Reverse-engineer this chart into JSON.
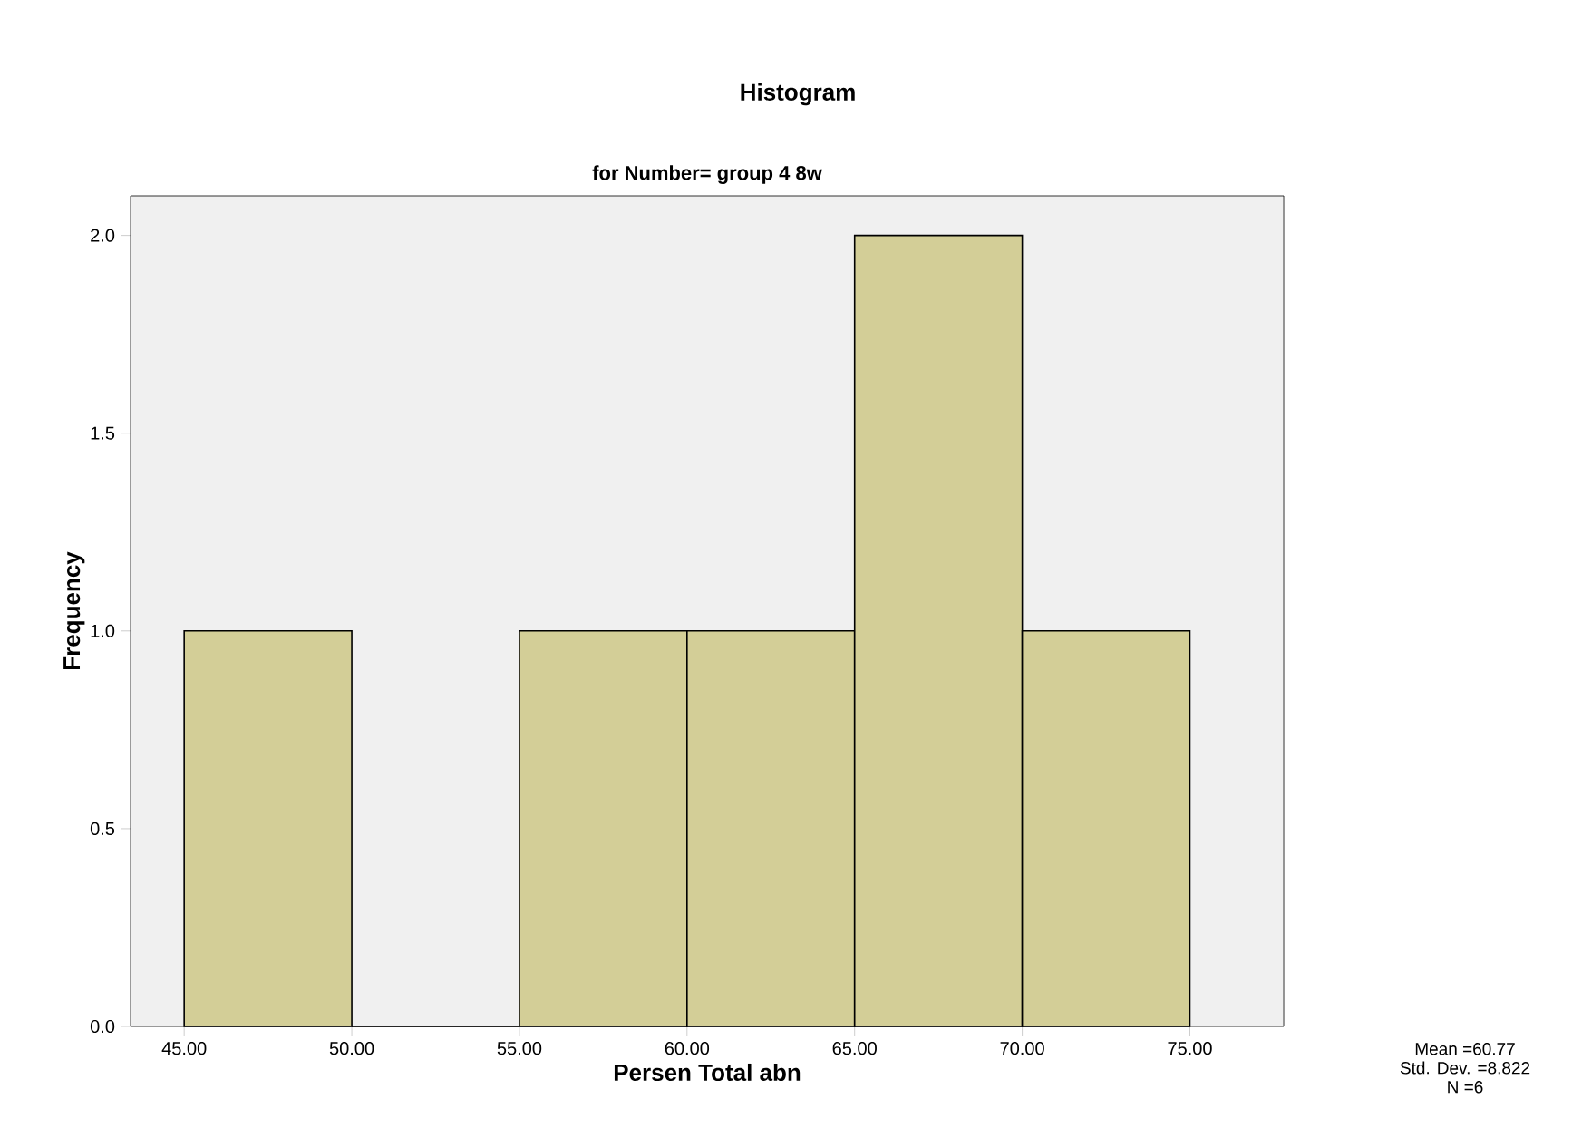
{
  "chart_data": {
    "type": "histogram",
    "title": "Histogram",
    "subtitle": "for Number= group 4 8w",
    "xlabel": "Persen Total abn",
    "ylabel": "Frequency",
    "bins": [
      45,
      50,
      55,
      60,
      65,
      70,
      75
    ],
    "values": [
      1,
      0,
      1,
      1,
      2,
      1
    ],
    "color": "#d3ce97",
    "xlim": [
      43.4,
      77.8
    ],
    "ylim": [
      0,
      2.1
    ],
    "xticks": [
      {
        "value": 45,
        "label": "45.00"
      },
      {
        "value": 50,
        "label": "50.00"
      },
      {
        "value": 55,
        "label": "55.00"
      },
      {
        "value": 60,
        "label": "60.00"
      },
      {
        "value": 65,
        "label": "65.00"
      },
      {
        "value": 70,
        "label": "70.00"
      },
      {
        "value": 75,
        "label": "75.00"
      }
    ],
    "yticks": [
      {
        "value": 0,
        "label": "0.0"
      },
      {
        "value": 0.5,
        "label": "0.5"
      },
      {
        "value": 1,
        "label": "1.0"
      },
      {
        "value": 1.5,
        "label": "1.5"
      },
      {
        "value": 2,
        "label": "2.0"
      }
    ],
    "annotations": [
      "Mean =60.77",
      "Std. Dev. =8.822",
      "N =6"
    ]
  }
}
